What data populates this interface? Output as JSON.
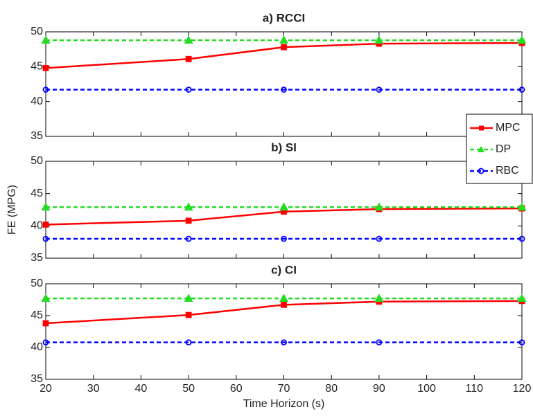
{
  "chart_data": [
    {
      "type": "line",
      "title": "a) RCCI",
      "x": [
        20,
        50,
        70,
        90,
        120
      ],
      "xlim": [
        20,
        120
      ],
      "ylim": [
        35,
        50
      ],
      "yticks": [
        35,
        40,
        45,
        50
      ],
      "series": [
        {
          "name": "MPC",
          "color": "#ff0000",
          "values": [
            44.8,
            46.1,
            47.8,
            48.3,
            48.4
          ]
        },
        {
          "name": "DP",
          "color": "#22dd22",
          "values": [
            48.8,
            48.8,
            48.8,
            48.8,
            48.8
          ]
        },
        {
          "name": "RBC",
          "color": "#0000ff",
          "values": [
            41.7,
            41.7,
            41.7,
            41.7,
            41.7
          ]
        }
      ]
    },
    {
      "type": "line",
      "title": "b) SI",
      "y_label": "FE (MPG)",
      "x": [
        20,
        50,
        70,
        90,
        120
      ],
      "xlim": [
        20,
        120
      ],
      "ylim": [
        35,
        50
      ],
      "yticks": [
        35,
        40,
        45,
        50
      ],
      "series": [
        {
          "name": "MPC",
          "color": "#ff0000",
          "values": [
            40.2,
            40.8,
            42.2,
            42.6,
            42.7
          ]
        },
        {
          "name": "DP",
          "color": "#22dd22",
          "values": [
            42.9,
            42.9,
            42.9,
            42.9,
            42.9
          ]
        },
        {
          "name": "RBC",
          "color": "#0000ff",
          "values": [
            38.0,
            38.0,
            38.0,
            38.0,
            38.0
          ]
        }
      ]
    },
    {
      "type": "line",
      "title": "c) CI",
      "x_label": "Time Horizon (s)",
      "x": [
        20,
        50,
        70,
        90,
        120
      ],
      "xlim": [
        20,
        120
      ],
      "ylim": [
        35,
        50
      ],
      "yticks": [
        35,
        40,
        45,
        50
      ],
      "xticks": [
        20,
        30,
        40,
        50,
        60,
        70,
        80,
        90,
        100,
        110,
        120
      ],
      "series": [
        {
          "name": "MPC",
          "color": "#ff0000",
          "values": [
            43.8,
            45.1,
            46.7,
            47.2,
            47.3
          ]
        },
        {
          "name": "DP",
          "color": "#22dd22",
          "values": [
            47.7,
            47.7,
            47.7,
            47.7,
            47.7
          ]
        },
        {
          "name": "RBC",
          "color": "#0000ff",
          "values": [
            40.8,
            40.8,
            40.8,
            40.8,
            40.8
          ]
        }
      ]
    }
  ]
}
